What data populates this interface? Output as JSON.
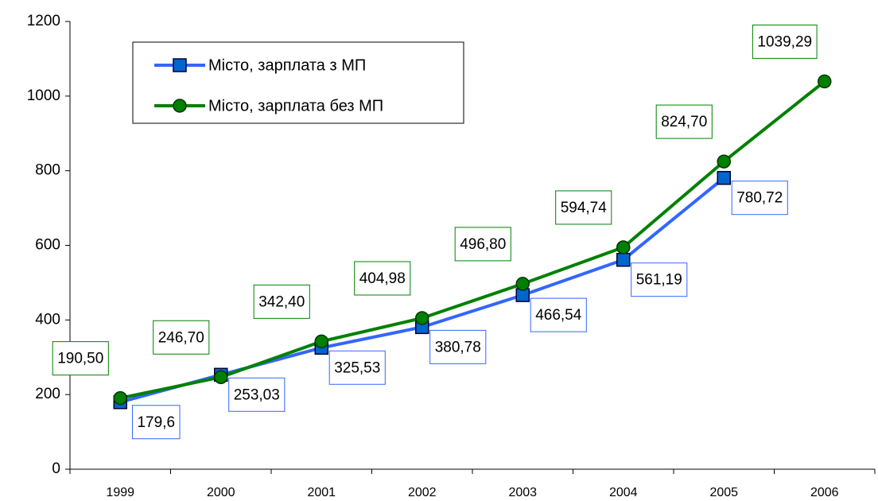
{
  "chart_data": {
    "type": "line",
    "categories": [
      "1999",
      "2000",
      "2001",
      "2002",
      "2003",
      "2004",
      "2005",
      "2006"
    ],
    "series": [
      {
        "name": "Місто, зарплата з МП",
        "color": "#3366ff",
        "marker": "square",
        "marker_color": "#0066cc",
        "values": [
          179.6,
          253.03,
          325.53,
          380.78,
          466.54,
          561.19,
          780.72,
          null
        ],
        "value_labels": [
          "179,6",
          "253,03",
          "325,53",
          "380,78",
          "466,54",
          "561,19",
          "780,72",
          null
        ]
      },
      {
        "name": "Місто, зарплата без МП",
        "color": "#008000",
        "marker": "circle",
        "marker_color": "#008000",
        "values": [
          190.5,
          246.7,
          342.4,
          404.98,
          496.8,
          594.74,
          824.7,
          1039.29
        ],
        "value_labels": [
          "190,50",
          "246,70",
          "342,40",
          "404,98",
          "496,80",
          "594,74",
          "824,70",
          "1039,29"
        ]
      }
    ],
    "ylim": [
      0,
      1200
    ],
    "yticks": [
      0,
      200,
      400,
      600,
      800,
      1000,
      1200
    ],
    "grid": false,
    "legend": "upper left"
  }
}
